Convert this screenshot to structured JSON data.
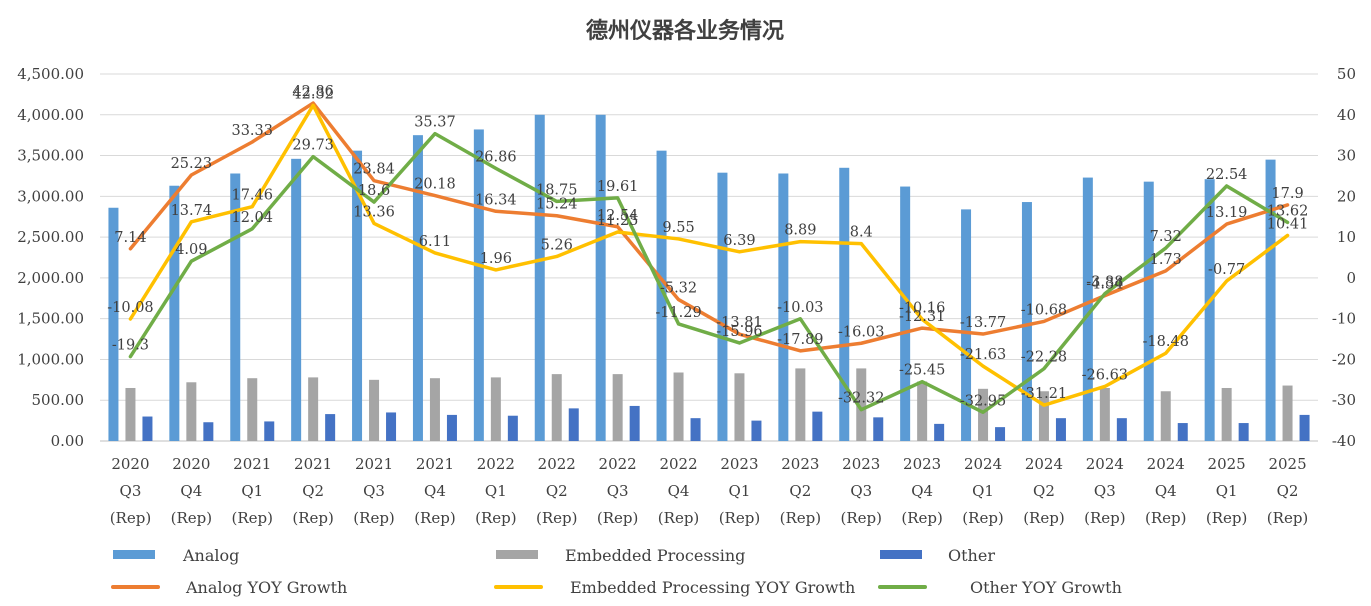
{
  "chart_data": {
    "type": "bar+line",
    "title": "德州仪器各业务情况",
    "categories": [
      [
        "2020",
        "Q3",
        "(Rep)"
      ],
      [
        "2020",
        "Q4",
        "(Rep)"
      ],
      [
        "2021",
        "Q1",
        "(Rep)"
      ],
      [
        "2021",
        "Q2",
        "(Rep)"
      ],
      [
        "2021",
        "Q3",
        "(Rep)"
      ],
      [
        "2021",
        "Q4",
        "(Rep)"
      ],
      [
        "2022",
        "Q1",
        "(Rep)"
      ],
      [
        "2022",
        "Q2",
        "(Rep)"
      ],
      [
        "2022",
        "Q3",
        "(Rep)"
      ],
      [
        "2022",
        "Q4",
        "(Rep)"
      ],
      [
        "2023",
        "Q1",
        "(Rep)"
      ],
      [
        "2023",
        "Q2",
        "(Rep)"
      ],
      [
        "2023",
        "Q3",
        "(Rep)"
      ],
      [
        "2023",
        "Q4",
        "(Rep)"
      ],
      [
        "2024",
        "Q1",
        "(Rep)"
      ],
      [
        "2024",
        "Q2",
        "(Rep)"
      ],
      [
        "2024",
        "Q3",
        "(Rep)"
      ],
      [
        "2024",
        "Q4",
        "(Rep)"
      ],
      [
        "2025",
        "Q1",
        "(Rep)"
      ],
      [
        "2025",
        "Q2",
        "(Rep)"
      ]
    ],
    "y_left": {
      "min": 0,
      "max": 4500,
      "step": 500,
      "tick_labels": [
        "0.00",
        "500.00",
        "1,000.00",
        "1,500.00",
        "2,000.00",
        "2,500.00",
        "3,000.00",
        "3,500.00",
        "4,000.00",
        "4,500.00"
      ]
    },
    "y_right": {
      "min": -40,
      "max": 50,
      "step": 10,
      "tick_labels": [
        "-40",
        "-30",
        "-20",
        "-10",
        "0",
        "10",
        "20",
        "30",
        "40",
        "50"
      ]
    },
    "grid": "horizontal",
    "legend_position": "bottom",
    "bar_series": [
      {
        "name": "Analog",
        "color": "#5b9bd5",
        "values": [
          2860,
          3130,
          3280,
          3460,
          3560,
          3750,
          3820,
          4000,
          4000,
          3560,
          3290,
          3280,
          3350,
          3120,
          2840,
          2930,
          3230,
          3180,
          3210,
          3450
        ]
      },
      {
        "name": "Embedded Processing",
        "color": "#a5a5a5",
        "values": [
          650,
          720,
          770,
          780,
          750,
          770,
          780,
          820,
          820,
          840,
          830,
          890,
          890,
          730,
          640,
          610,
          650,
          610,
          650,
          680
        ]
      },
      {
        "name": "Other",
        "color": "#4472c4",
        "values": [
          300,
          230,
          240,
          330,
          350,
          320,
          310,
          400,
          430,
          280,
          250,
          360,
          290,
          210,
          170,
          280,
          280,
          220,
          220,
          320
        ]
      }
    ],
    "line_series": [
      {
        "name": "Analog YOY Growth",
        "color": "#ed7d31",
        "values": [
          7.14,
          25.23,
          33.33,
          42.86,
          23.84,
          20.18,
          16.34,
          15.24,
          12.54,
          -5.32,
          -13.81,
          -17.89,
          -16.03,
          -12.31,
          -13.77,
          -10.68,
          -4.34,
          1.73,
          13.19,
          17.9
        ],
        "labels": [
          "7.14",
          "25.23",
          "33.33",
          "42.86",
          "23.84",
          "20.18",
          "16.34",
          "15.24",
          "12.54",
          "-5.32",
          "-13.81",
          "-17.89",
          "-16.03",
          "-12.31",
          "-13.77",
          "-10.68",
          "-4.34",
          "1.73",
          "13.19",
          "17.9"
        ]
      },
      {
        "name": "Embedded Processing YOY Growth",
        "color": "#ffc000",
        "values": [
          -10.08,
          13.74,
          17.46,
          42.32,
          13.36,
          6.11,
          1.96,
          5.26,
          11.25,
          9.55,
          6.39,
          8.89,
          8.4,
          -10.16,
          -21.63,
          -31.21,
          -26.63,
          -18.48,
          -0.77,
          10.41
        ],
        "labels": [
          "-10.08",
          "13.74",
          "17.46",
          "42.32",
          "13.36",
          "6.11",
          "1.96",
          "5.26",
          "11.25",
          "9.55",
          "6.39",
          "8.89",
          "8.4",
          "-10.16",
          "-21.63",
          "-31.21",
          "-26.63",
          "-18.48",
          "-0.77",
          "10.41"
        ]
      },
      {
        "name": "Other  YOY Growth",
        "color": "#70ad47",
        "values": [
          -19.3,
          4.09,
          12.04,
          29.73,
          18.6,
          35.37,
          26.86,
          18.75,
          19.61,
          -11.29,
          -15.96,
          -10.03,
          -32.32,
          -25.45,
          -32.95,
          -22.28,
          -3.88,
          7.32,
          22.54,
          13.62
        ],
        "labels": [
          "-19.3",
          "4.09",
          "12.04",
          "29.73",
          "18.6",
          "35.37",
          "26.86",
          "18.75",
          "19.61",
          "-11.29",
          "-15.96",
          "-10.03",
          "-32.32",
          "-25.45",
          "-32.95",
          "-22.28",
          "-3.88",
          "7.32",
          "22.54",
          "13.62"
        ]
      }
    ]
  }
}
